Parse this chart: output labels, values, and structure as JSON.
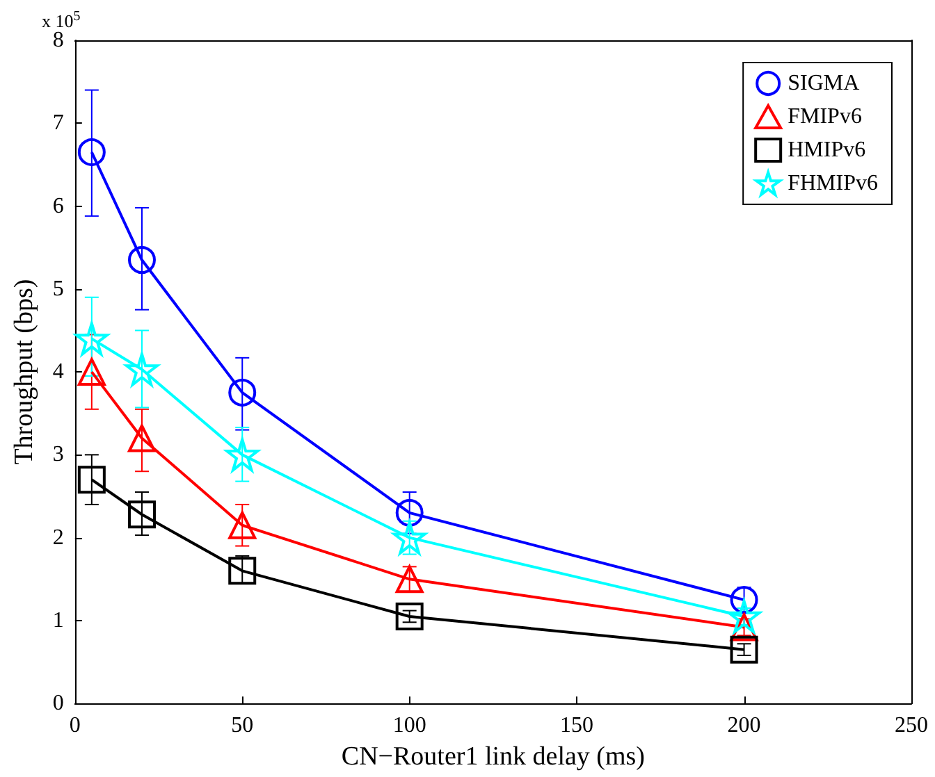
{
  "chart_data": {
    "type": "line",
    "xlabel": "CN−Router1 link delay (ms)",
    "ylabel": "Throughput (bps)",
    "annotations": [
      "x 10$^{5}$"
    ],
    "x": [
      5,
      20,
      50,
      100,
      200
    ],
    "series": [
      {
        "name": "SIGMA",
        "color": "#0000ff",
        "marker": "circle",
        "values": [
          6.65,
          5.35,
          3.75,
          2.3,
          1.25
        ],
        "errors": [
          [
            5.88,
            7.4
          ],
          [
            4.75,
            5.98
          ],
          [
            3.3,
            4.17
          ],
          [
            2.05,
            2.55
          ],
          [
            1.1,
            1.4
          ]
        ]
      },
      {
        "name": "FMIPv6",
        "color": "#ff0000",
        "marker": "triangle",
        "values": [
          4.0,
          3.2,
          2.15,
          1.5,
          0.92
        ],
        "errors": [
          [
            3.55,
            4.45
          ],
          [
            2.8,
            3.55
          ],
          [
            1.9,
            2.4
          ],
          [
            1.35,
            1.65
          ],
          [
            0.82,
            1.02
          ]
        ]
      },
      {
        "name": "HMIPv6",
        "color": "#000000",
        "marker": "square",
        "values": [
          2.7,
          2.28,
          1.6,
          1.05,
          0.65
        ],
        "errors": [
          [
            2.4,
            3.0
          ],
          [
            2.03,
            2.55
          ],
          [
            1.45,
            1.78
          ],
          [
            0.98,
            1.12
          ],
          [
            0.58,
            0.72
          ]
        ]
      },
      {
        "name": "FHMIPv6",
        "color": "#00ffff",
        "marker": "star",
        "values": [
          4.4,
          4.03,
          3.0,
          2.0,
          1.05
        ],
        "errors": [
          [
            3.95,
            4.9
          ],
          [
            3.57,
            4.5
          ],
          [
            2.68,
            3.33
          ],
          [
            1.8,
            2.2
          ],
          [
            0.95,
            1.15
          ]
        ]
      }
    ],
    "xlim": [
      0,
      250
    ],
    "xticks": [
      0,
      50,
      100,
      150,
      200,
      250
    ],
    "ylim": [
      0,
      8
    ],
    "yticks": [
      0,
      1,
      2,
      3,
      4,
      5,
      6,
      7,
      8
    ],
    "grid": false,
    "legend": "top right",
    "line_style": "solid"
  }
}
